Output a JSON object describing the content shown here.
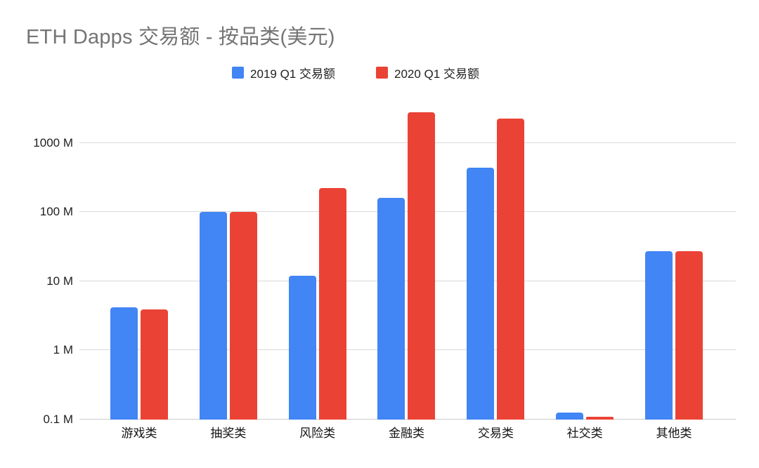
{
  "chart": {
    "title": "ETH Dapps 交易额 - 按品类(美元)"
  },
  "chart_data": {
    "type": "bar",
    "title": "ETH Dapps 交易额 - 按品类(美元)",
    "unit": "M (million USD)",
    "categories": [
      "游戏类",
      "抽奖类",
      "风险类",
      "金融类",
      "交易类",
      "社交类",
      "其他类"
    ],
    "series": [
      {
        "name": "2019 Q1 交易额",
        "color": "#4285F4",
        "values": [
          4.2,
          100,
          12,
          160,
          440,
          0.125,
          27
        ]
      },
      {
        "name": "2020 Q1 交易额",
        "color": "#EA4335",
        "values": [
          3.9,
          100,
          220,
          2800,
          2270,
          0.11,
          27
        ]
      }
    ],
    "y_axis": {
      "scale": "log",
      "min": 0.1,
      "max": 3000,
      "ticks": [
        {
          "value": 0.1,
          "label": "0.1 M"
        },
        {
          "value": 1,
          "label": "1 M"
        },
        {
          "value": 10,
          "label": "10 M"
        },
        {
          "value": 100,
          "label": "100 M"
        },
        {
          "value": 1000,
          "label": "1000 M"
        }
      ]
    },
    "legend_position": "top",
    "grid": true
  },
  "colors": {
    "title_text": "#757575",
    "axis_text": "#1f1f1f",
    "gridline": "#d9d9d9",
    "baseline": "#cccccc",
    "background": "#ffffff"
  }
}
